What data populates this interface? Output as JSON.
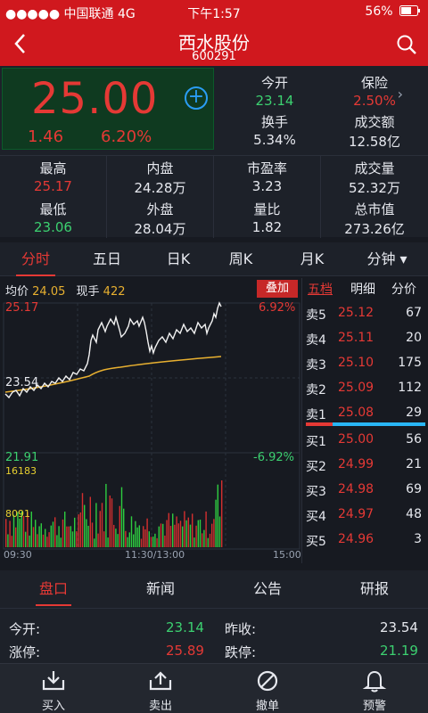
{
  "status": {
    "carrier": "●●●●● 中国联通 4G",
    "time": "下午1:57",
    "battery": "56%"
  },
  "header": {
    "title": "西水股份",
    "code": "600291"
  },
  "quote": {
    "price": "25.00",
    "change": "1.46",
    "change_pct": "6.20%",
    "fields": [
      {
        "label": "今开",
        "value": "23.14",
        "color": "#3cd070"
      },
      {
        "label": "保险",
        "value": "2.50%",
        "color": "#e53935"
      },
      {
        "label": "换手",
        "value": "5.34%",
        "color": "#e6e8ee"
      },
      {
        "label": "成交额",
        "value": "12.58亿",
        "color": "#e6e8ee"
      }
    ]
  },
  "stats": [
    {
      "label": "最高",
      "value": "25.17",
      "color": "#e53935"
    },
    {
      "label": "内盘",
      "value": "24.28万",
      "color": "#e6e8ee"
    },
    {
      "label": "市盈率",
      "value": "3.23",
      "color": "#e6e8ee"
    },
    {
      "label": "成交量",
      "value": "52.32万",
      "color": "#e6e8ee"
    },
    {
      "label": "最低",
      "value": "23.06",
      "color": "#3cd070"
    },
    {
      "label": "外盘",
      "value": "28.04万",
      "color": "#e6e8ee"
    },
    {
      "label": "量比",
      "value": "1.82",
      "color": "#e6e8ee"
    },
    {
      "label": "总市值",
      "value": "273.26亿",
      "color": "#e6e8ee"
    }
  ],
  "chart_tabs": [
    "分时",
    "五日",
    "日K",
    "周K",
    "月K",
    "分钟 ▾"
  ],
  "chart": {
    "avg_label": "均价",
    "avg_value": "24.05",
    "now_label": "现手",
    "now_value": "422",
    "overlay_button": "叠加",
    "top_price": "25.17",
    "top_pct": "6.92%",
    "mid_price": "23.54",
    "bottom_price": "21.91",
    "bottom_pct": "-6.92%",
    "vol_max": "16183",
    "vol_mid": "8091",
    "time_start": "09:30",
    "time_mid": "11:30/13:00",
    "time_end": "15:00"
  },
  "book_tabs": [
    "五档",
    "明细",
    "分价"
  ],
  "sell": [
    {
      "name": "卖5",
      "price": "25.12",
      "qty": "67"
    },
    {
      "name": "卖4",
      "price": "25.11",
      "qty": "20"
    },
    {
      "name": "卖3",
      "price": "25.10",
      "qty": "175"
    },
    {
      "name": "卖2",
      "price": "25.09",
      "qty": "112"
    },
    {
      "name": "卖1",
      "price": "25.08",
      "qty": "29"
    }
  ],
  "buy": [
    {
      "name": "买1",
      "price": "25.00",
      "qty": "56"
    },
    {
      "name": "买2",
      "price": "24.99",
      "qty": "21"
    },
    {
      "name": "买3",
      "price": "24.98",
      "qty": "69"
    },
    {
      "name": "买4",
      "price": "24.97",
      "qty": "48"
    },
    {
      "name": "买5",
      "price": "24.96",
      "qty": "3"
    }
  ],
  "section_tabs": [
    "盘口",
    "新闻",
    "公告",
    "研报"
  ],
  "section_rows": [
    {
      "label": "今开:",
      "value": "23.14",
      "color": "#3cd070"
    },
    {
      "label": "昨收:",
      "value": "23.54",
      "color": "#e6e8ee"
    },
    {
      "label": "涨停:",
      "value": "25.89",
      "color": "#e53935"
    },
    {
      "label": "跌停:",
      "value": "21.19",
      "color": "#3cd070"
    }
  ],
  "actions": [
    {
      "label": "买入",
      "icon": "buy-tray-icon"
    },
    {
      "label": "卖出",
      "icon": "sell-tray-icon"
    },
    {
      "label": "撤单",
      "icon": "cancel-circle-icon"
    },
    {
      "label": "预警",
      "icon": "bell-icon"
    }
  ]
}
